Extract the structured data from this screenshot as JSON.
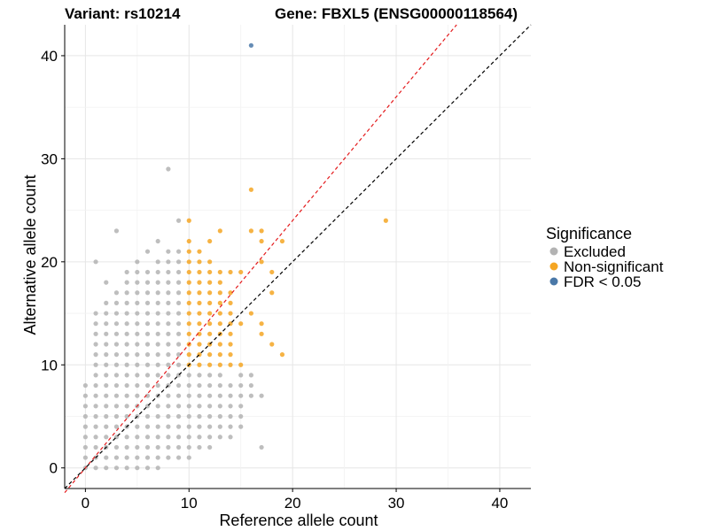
{
  "chart_data": {
    "type": "scatter",
    "title_left": "Variant: rs10214",
    "title_right": "Gene: FBXL5 (ENSG00000118564)",
    "xlabel": "Reference allele count",
    "ylabel": "Alternative allele count",
    "xlim": [
      -2,
      43
    ],
    "ylim": [
      -2,
      43
    ],
    "xticks": [
      0,
      10,
      20,
      30,
      40
    ],
    "yticks": [
      0,
      10,
      20,
      30,
      40
    ],
    "grid": true,
    "legend": {
      "title": "Significance",
      "placement": "right",
      "entries": [
        {
          "label": "Excluded",
          "color": "#b3b3b3"
        },
        {
          "label": "Non-significant",
          "color": "#f5a623"
        },
        {
          "label": "FDR < 0.05",
          "color": "#4a78a8"
        }
      ]
    },
    "reference_lines": [
      {
        "color": "#e41a1c",
        "slope": 1.2,
        "intercept": 0,
        "style": "dashed"
      },
      {
        "color": "#000000",
        "slope": 1.0,
        "intercept": 0,
        "style": "dashed"
      }
    ],
    "series": [
      {
        "name": "Excluded",
        "color": "#b3b3b3",
        "points": [
          [
            0,
            0
          ],
          [
            0,
            1
          ],
          [
            0,
            2
          ],
          [
            0,
            3
          ],
          [
            0,
            4
          ],
          [
            0,
            5
          ],
          [
            0,
            6
          ],
          [
            0,
            7
          ],
          [
            0,
            8
          ],
          [
            1,
            0
          ],
          [
            1,
            1
          ],
          [
            1,
            2
          ],
          [
            1,
            3
          ],
          [
            1,
            4
          ],
          [
            1,
            5
          ],
          [
            1,
            6
          ],
          [
            1,
            7
          ],
          [
            1,
            8
          ],
          [
            1,
            9
          ],
          [
            1,
            10
          ],
          [
            1,
            11
          ],
          [
            1,
            12
          ],
          [
            1,
            13
          ],
          [
            1,
            14
          ],
          [
            1,
            15
          ],
          [
            1,
            20
          ],
          [
            2,
            0
          ],
          [
            2,
            1
          ],
          [
            2,
            2
          ],
          [
            2,
            3
          ],
          [
            2,
            4
          ],
          [
            2,
            5
          ],
          [
            2,
            6
          ],
          [
            2,
            7
          ],
          [
            2,
            8
          ],
          [
            2,
            9
          ],
          [
            2,
            10
          ],
          [
            2,
            11
          ],
          [
            2,
            12
          ],
          [
            2,
            13
          ],
          [
            2,
            14
          ],
          [
            2,
            15
          ],
          [
            2,
            16
          ],
          [
            2,
            18
          ],
          [
            3,
            0
          ],
          [
            3,
            1
          ],
          [
            3,
            2
          ],
          [
            3,
            3
          ],
          [
            3,
            4
          ],
          [
            3,
            5
          ],
          [
            3,
            6
          ],
          [
            3,
            7
          ],
          [
            3,
            8
          ],
          [
            3,
            9
          ],
          [
            3,
            10
          ],
          [
            3,
            11
          ],
          [
            3,
            12
          ],
          [
            3,
            13
          ],
          [
            3,
            14
          ],
          [
            3,
            15
          ],
          [
            3,
            16
          ],
          [
            3,
            17
          ],
          [
            3,
            23
          ],
          [
            4,
            0
          ],
          [
            4,
            1
          ],
          [
            4,
            2
          ],
          [
            4,
            3
          ],
          [
            4,
            4
          ],
          [
            4,
            5
          ],
          [
            4,
            6
          ],
          [
            4,
            7
          ],
          [
            4,
            8
          ],
          [
            4,
            9
          ],
          [
            4,
            10
          ],
          [
            4,
            11
          ],
          [
            4,
            12
          ],
          [
            4,
            13
          ],
          [
            4,
            14
          ],
          [
            4,
            15
          ],
          [
            4,
            16
          ],
          [
            4,
            17
          ],
          [
            4,
            18
          ],
          [
            4,
            19
          ],
          [
            5,
            0
          ],
          [
            5,
            1
          ],
          [
            5,
            2
          ],
          [
            5,
            3
          ],
          [
            5,
            4
          ],
          [
            5,
            5
          ],
          [
            5,
            6
          ],
          [
            5,
            7
          ],
          [
            5,
            8
          ],
          [
            5,
            9
          ],
          [
            5,
            10
          ],
          [
            5,
            11
          ],
          [
            5,
            12
          ],
          [
            5,
            13
          ],
          [
            5,
            14
          ],
          [
            5,
            15
          ],
          [
            5,
            16
          ],
          [
            5,
            17
          ],
          [
            5,
            18
          ],
          [
            5,
            19
          ],
          [
            5,
            20
          ],
          [
            6,
            0
          ],
          [
            6,
            1
          ],
          [
            6,
            2
          ],
          [
            6,
            3
          ],
          [
            6,
            4
          ],
          [
            6,
            5
          ],
          [
            6,
            6
          ],
          [
            6,
            7
          ],
          [
            6,
            8
          ],
          [
            6,
            9
          ],
          [
            6,
            10
          ],
          [
            6,
            11
          ],
          [
            6,
            12
          ],
          [
            6,
            13
          ],
          [
            6,
            14
          ],
          [
            6,
            15
          ],
          [
            6,
            16
          ],
          [
            6,
            17
          ],
          [
            6,
            18
          ],
          [
            6,
            19
          ],
          [
            6,
            21
          ],
          [
            7,
            0
          ],
          [
            7,
            1
          ],
          [
            7,
            2
          ],
          [
            7,
            3
          ],
          [
            7,
            4
          ],
          [
            7,
            5
          ],
          [
            7,
            6
          ],
          [
            7,
            7
          ],
          [
            7,
            8
          ],
          [
            7,
            9
          ],
          [
            7,
            10
          ],
          [
            7,
            11
          ],
          [
            7,
            12
          ],
          [
            7,
            13
          ],
          [
            7,
            14
          ],
          [
            7,
            15
          ],
          [
            7,
            16
          ],
          [
            7,
            17
          ],
          [
            7,
            18
          ],
          [
            7,
            19
          ],
          [
            7,
            20
          ],
          [
            7,
            22
          ],
          [
            8,
            1
          ],
          [
            8,
            2
          ],
          [
            8,
            3
          ],
          [
            8,
            4
          ],
          [
            8,
            5
          ],
          [
            8,
            6
          ],
          [
            8,
            7
          ],
          [
            8,
            8
          ],
          [
            8,
            9
          ],
          [
            8,
            10
          ],
          [
            8,
            11
          ],
          [
            8,
            12
          ],
          [
            8,
            13
          ],
          [
            8,
            14
          ],
          [
            8,
            15
          ],
          [
            8,
            16
          ],
          [
            8,
            17
          ],
          [
            8,
            18
          ],
          [
            8,
            19
          ],
          [
            8,
            20
          ],
          [
            8,
            21
          ],
          [
            8,
            29
          ],
          [
            9,
            1
          ],
          [
            9,
            2
          ],
          [
            9,
            3
          ],
          [
            9,
            4
          ],
          [
            9,
            5
          ],
          [
            9,
            6
          ],
          [
            9,
            7
          ],
          [
            9,
            8
          ],
          [
            9,
            9
          ],
          [
            9,
            10
          ],
          [
            9,
            11
          ],
          [
            9,
            12
          ],
          [
            9,
            13
          ],
          [
            9,
            14
          ],
          [
            9,
            15
          ],
          [
            9,
            16
          ],
          [
            9,
            17
          ],
          [
            9,
            18
          ],
          [
            9,
            19
          ],
          [
            9,
            20
          ],
          [
            9,
            21
          ],
          [
            9,
            24
          ],
          [
            10,
            1
          ],
          [
            10,
            2
          ],
          [
            10,
            3
          ],
          [
            10,
            4
          ],
          [
            10,
            5
          ],
          [
            10,
            6
          ],
          [
            10,
            7
          ],
          [
            10,
            8
          ],
          [
            10,
            9
          ],
          [
            11,
            2
          ],
          [
            11,
            3
          ],
          [
            11,
            4
          ],
          [
            11,
            5
          ],
          [
            11,
            6
          ],
          [
            11,
            7
          ],
          [
            11,
            8
          ],
          [
            11,
            9
          ],
          [
            12,
            2
          ],
          [
            12,
            3
          ],
          [
            12,
            4
          ],
          [
            12,
            5
          ],
          [
            12,
            6
          ],
          [
            12,
            7
          ],
          [
            12,
            8
          ],
          [
            12,
            9
          ],
          [
            13,
            3
          ],
          [
            13,
            4
          ],
          [
            13,
            5
          ],
          [
            13,
            6
          ],
          [
            13,
            7
          ],
          [
            13,
            8
          ],
          [
            13,
            9
          ],
          [
            14,
            3
          ],
          [
            14,
            4
          ],
          [
            14,
            5
          ],
          [
            14,
            6
          ],
          [
            14,
            7
          ],
          [
            14,
            8
          ],
          [
            15,
            4
          ],
          [
            15,
            5
          ],
          [
            15,
            6
          ],
          [
            15,
            7
          ],
          [
            15,
            8
          ],
          [
            15,
            9
          ],
          [
            16,
            7
          ],
          [
            16,
            8
          ],
          [
            16,
            9
          ],
          [
            17,
            2
          ],
          [
            17,
            7
          ]
        ]
      },
      {
        "name": "Non-significant",
        "color": "#f5a623",
        "points": [
          [
            10,
            10
          ],
          [
            10,
            11
          ],
          [
            10,
            12
          ],
          [
            10,
            13
          ],
          [
            10,
            14
          ],
          [
            10,
            15
          ],
          [
            10,
            16
          ],
          [
            10,
            17
          ],
          [
            10,
            18
          ],
          [
            10,
            19
          ],
          [
            10,
            20
          ],
          [
            10,
            21
          ],
          [
            10,
            22
          ],
          [
            10,
            24
          ],
          [
            11,
            10
          ],
          [
            11,
            11
          ],
          [
            11,
            12
          ],
          [
            11,
            13
          ],
          [
            11,
            14
          ],
          [
            11,
            15
          ],
          [
            11,
            16
          ],
          [
            11,
            17
          ],
          [
            11,
            18
          ],
          [
            11,
            19
          ],
          [
            11,
            20
          ],
          [
            11,
            21
          ],
          [
            12,
            10
          ],
          [
            12,
            11
          ],
          [
            12,
            12
          ],
          [
            12,
            13
          ],
          [
            12,
            14
          ],
          [
            12,
            15
          ],
          [
            12,
            16
          ],
          [
            12,
            17
          ],
          [
            12,
            18
          ],
          [
            12,
            19
          ],
          [
            12,
            20
          ],
          [
            12,
            22
          ],
          [
            13,
            10
          ],
          [
            13,
            11
          ],
          [
            13,
            12
          ],
          [
            13,
            13
          ],
          [
            13,
            14
          ],
          [
            13,
            15
          ],
          [
            13,
            16
          ],
          [
            13,
            17
          ],
          [
            13,
            18
          ],
          [
            13,
            19
          ],
          [
            13,
            23
          ],
          [
            14,
            10
          ],
          [
            14,
            11
          ],
          [
            14,
            12
          ],
          [
            14,
            13
          ],
          [
            14,
            14
          ],
          [
            14,
            15
          ],
          [
            14,
            16
          ],
          [
            14,
            17
          ],
          [
            14,
            19
          ],
          [
            15,
            10
          ],
          [
            15,
            14
          ],
          [
            15,
            19
          ],
          [
            16,
            15
          ],
          [
            16,
            23
          ],
          [
            16,
            27
          ],
          [
            17,
            13
          ],
          [
            17,
            14
          ],
          [
            17,
            20
          ],
          [
            17,
            22
          ],
          [
            17,
            23
          ],
          [
            18,
            12
          ],
          [
            18,
            17
          ],
          [
            18,
            19
          ],
          [
            19,
            11
          ],
          [
            19,
            22
          ],
          [
            29,
            24
          ]
        ]
      },
      {
        "name": "FDR < 0.05",
        "color": "#4a78a8",
        "points": [
          [
            16,
            41
          ]
        ]
      }
    ]
  }
}
